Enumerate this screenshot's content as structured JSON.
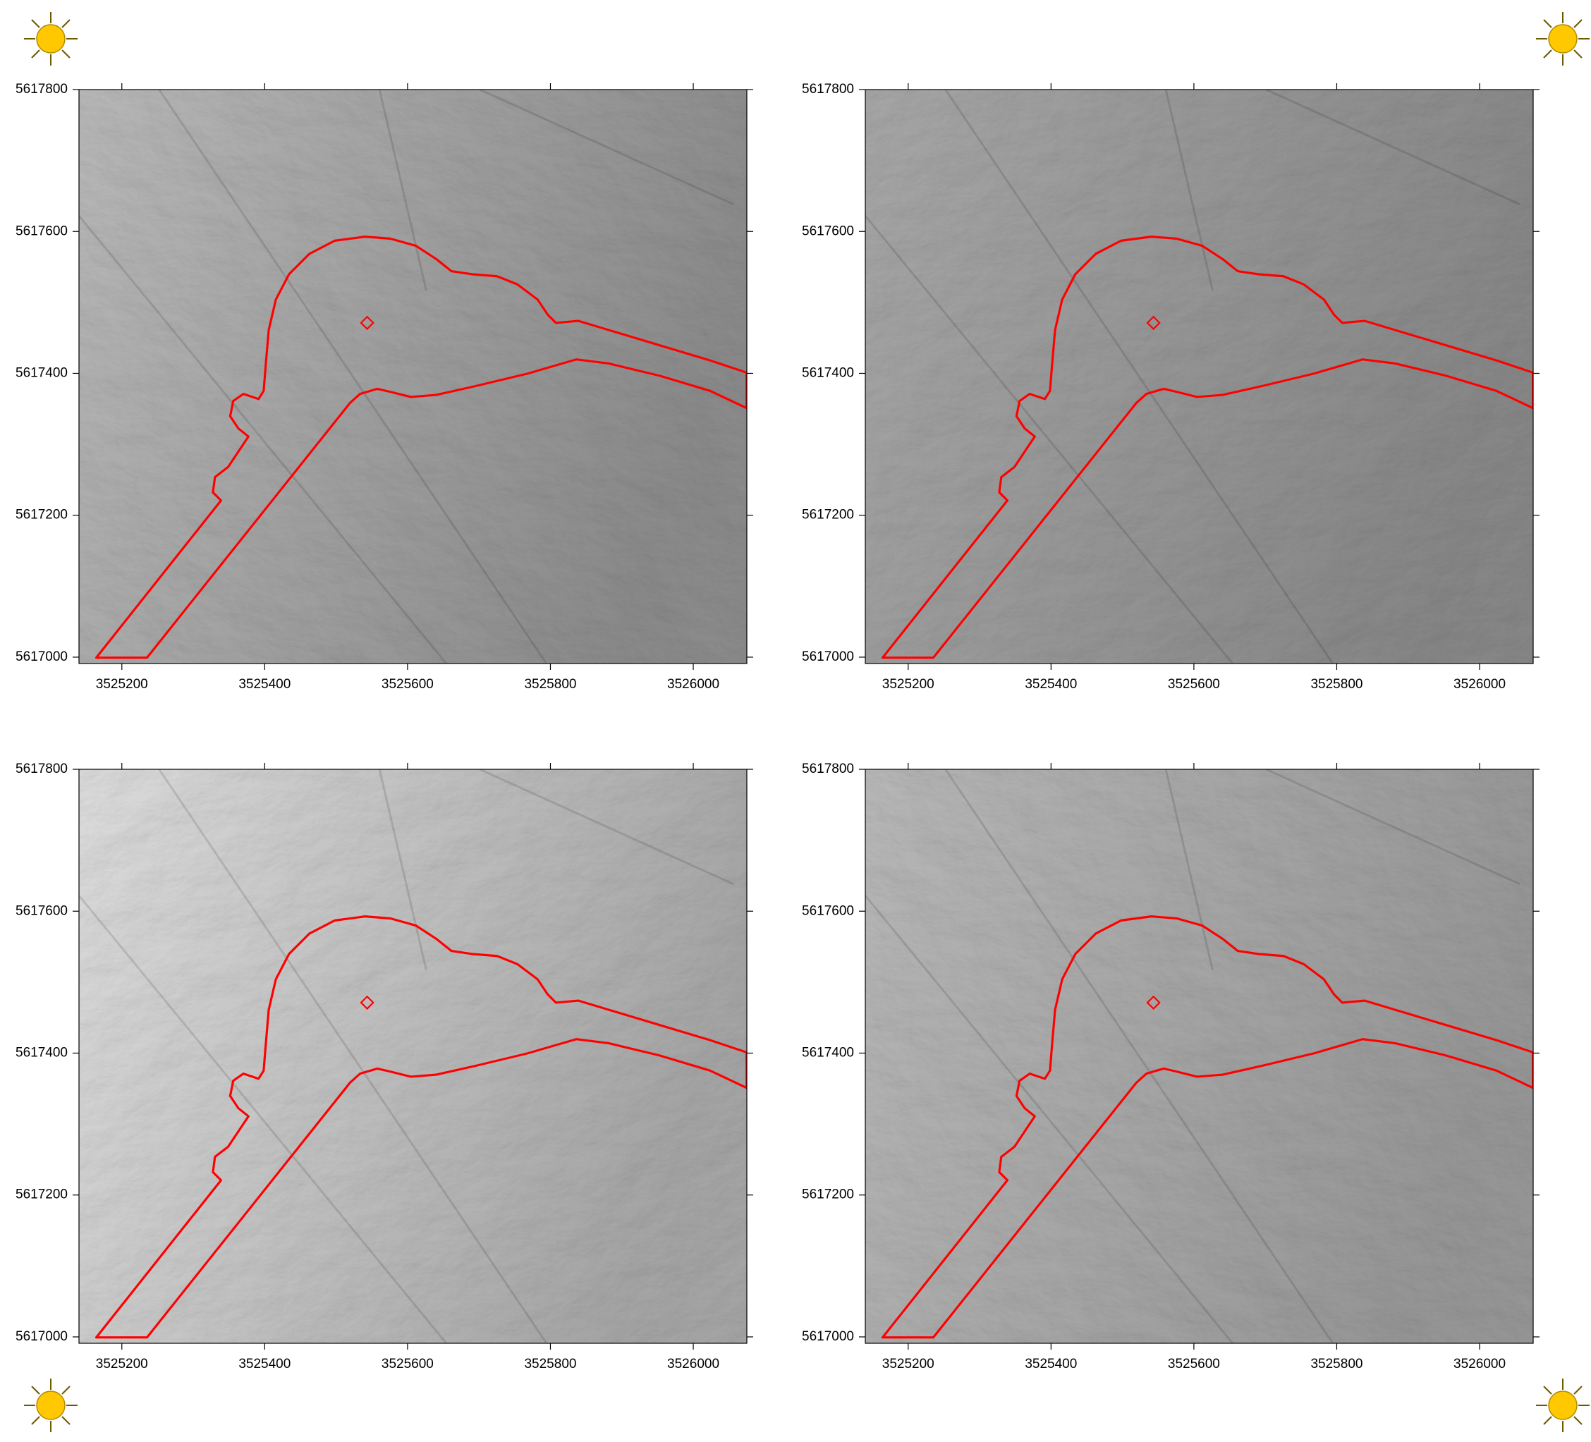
{
  "axes": {
    "xlim": [
      3525140,
      3526075
    ],
    "ylim": [
      5616991,
      5617800
    ],
    "xticks": [
      3525200,
      3525400,
      3525600,
      3525800,
      3526000
    ],
    "yticks": [
      5617000,
      5617200,
      5617400,
      5617600,
      5617800
    ]
  },
  "panels": [
    {
      "shade": "#bdbdbd",
      "shade_dark": "#8e8e8e",
      "azimuth": 315
    },
    {
      "shade": "#ababab",
      "shade_dark": "#8a8a8a",
      "azimuth": 45
    },
    {
      "shade": "#e2e2e2",
      "shade_dark": "#a9a9a9",
      "azimuth": 225
    },
    {
      "shade": "#bcbcbc",
      "shade_dark": "#9a9a9a",
      "azimuth": 135
    }
  ]
}
